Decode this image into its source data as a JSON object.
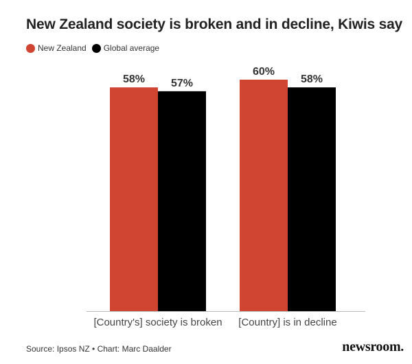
{
  "title": "New Zealand society is broken and in decline, Kiwis say",
  "source": "Source: Ipsos NZ • Chart: Marc Daalder",
  "brand": "newsroom.",
  "colors": {
    "new_zealand": "#d04432",
    "global_average": "#000000",
    "axis": "#bbbbbb"
  },
  "chart_data": {
    "type": "bar",
    "categories": [
      "[Country's] society is broken",
      "[Country] is in decline"
    ],
    "series": [
      {
        "name": "New Zealand",
        "values": [
          58,
          60
        ],
        "labels": [
          "58%",
          "60%"
        ]
      },
      {
        "name": "Global average",
        "values": [
          57,
          58
        ],
        "labels": [
          "57%",
          "58%"
        ]
      }
    ],
    "ylim": [
      0,
      60
    ],
    "grid": false,
    "legend": "top-left"
  }
}
